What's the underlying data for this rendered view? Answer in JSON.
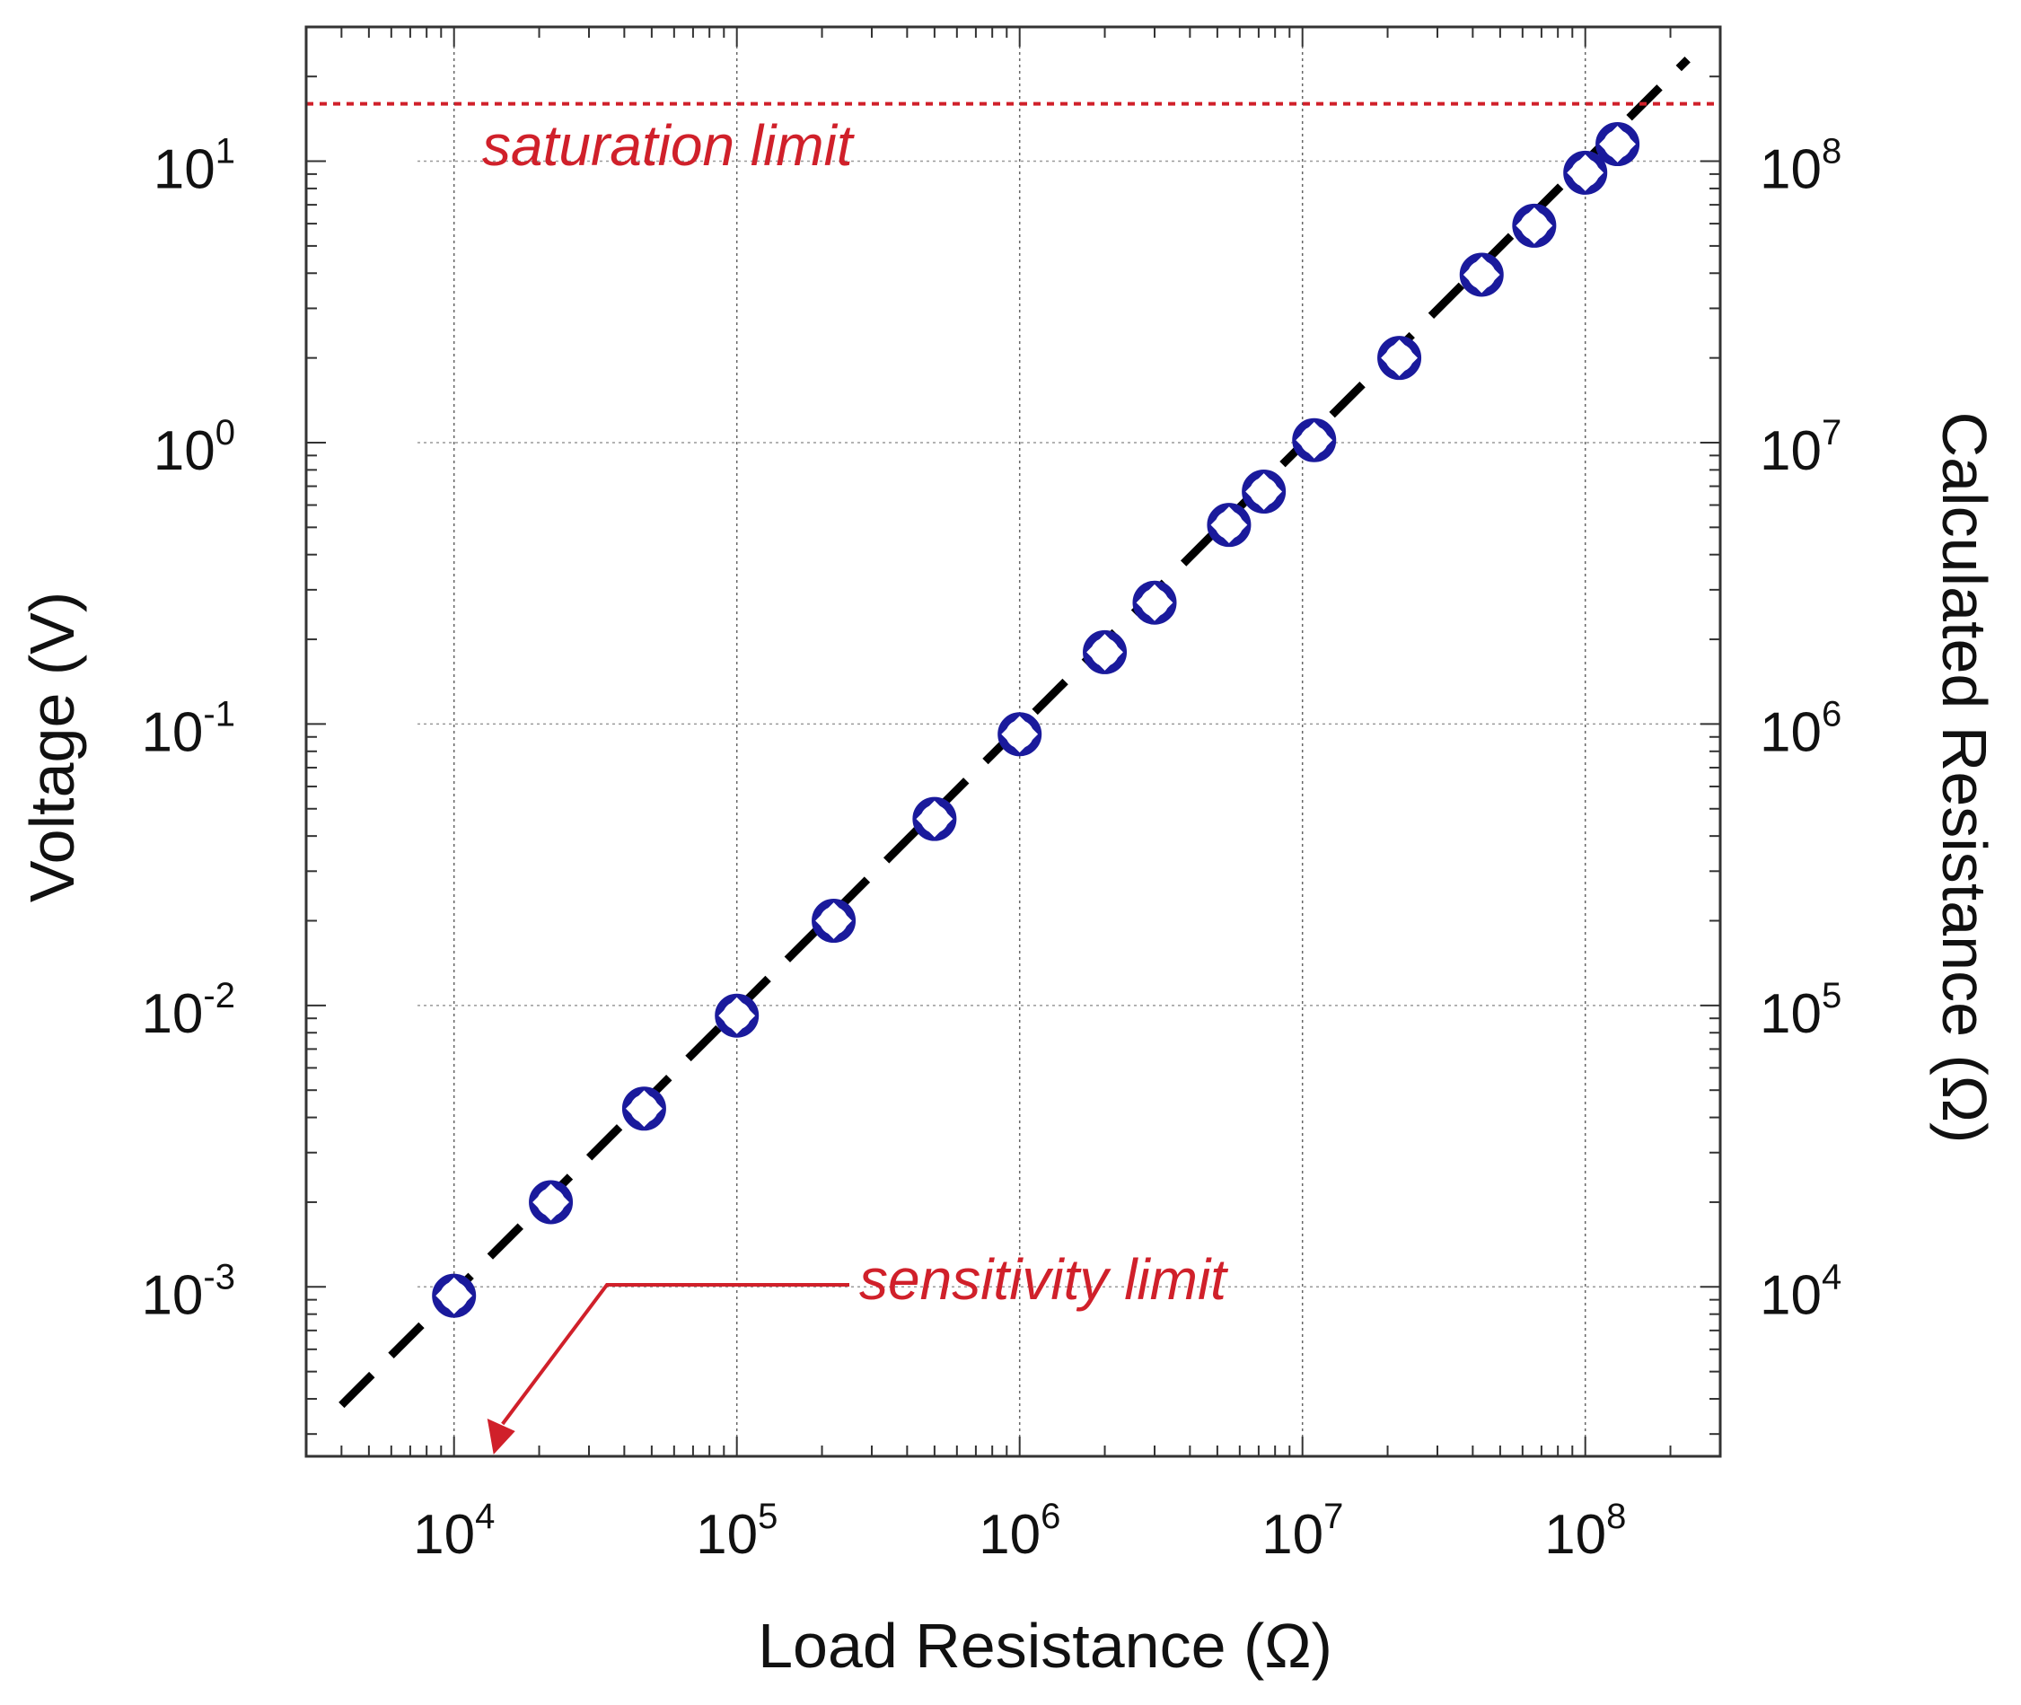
{
  "chart_data": {
    "type": "scatter",
    "title": "",
    "xlabel": "Load Resistance (Ω)",
    "ylabel": "Voltage (V)",
    "y2label": "Calculated Resistance (Ω)",
    "xscale": "log",
    "yscale": "log",
    "y2scale": "log",
    "xlim": [
      3000,
      300000000
    ],
    "ylim": [
      0.00025,
      30
    ],
    "y2lim": [
      2500,
      300000000
    ],
    "grid": true,
    "x_tick_labels": [
      {
        "value": 10000,
        "base": "10",
        "exp": "4"
      },
      {
        "value": 100000,
        "base": "10",
        "exp": "5"
      },
      {
        "value": 1000000,
        "base": "10",
        "exp": "6"
      },
      {
        "value": 10000000,
        "base": "10",
        "exp": "7"
      },
      {
        "value": 100000000,
        "base": "10",
        "exp": "8"
      }
    ],
    "y_tick_labels": [
      {
        "value": 0.001,
        "base": "10",
        "exp": "-3"
      },
      {
        "value": 0.01,
        "base": "10",
        "exp": "-2"
      },
      {
        "value": 0.1,
        "base": "10",
        "exp": "-1"
      },
      {
        "value": 1,
        "base": "10",
        "exp": "0"
      },
      {
        "value": 10,
        "base": "10",
        "exp": "1"
      }
    ],
    "y2_tick_labels": [
      {
        "value": 10000,
        "base": "10",
        "exp": "4"
      },
      {
        "value": 100000,
        "base": "10",
        "exp": "5"
      },
      {
        "value": 1000000,
        "base": "10",
        "exp": "6"
      },
      {
        "value": 10000000,
        "base": "10",
        "exp": "7"
      },
      {
        "value": 100000000,
        "base": "10",
        "exp": "8"
      }
    ],
    "series": [
      {
        "marker": "open-circle",
        "axis": "left",
        "color": "#1a1a9c",
        "x": [
          10000,
          22000,
          47000,
          100000,
          220000,
          500000,
          1000000,
          2000000,
          3000000,
          5500000,
          7300000,
          11000000,
          22000000,
          43000000,
          66000000,
          100000000,
          130000000
        ],
        "y": [
          0.00093,
          0.002,
          0.0043,
          0.0092,
          0.02,
          0.046,
          0.092,
          0.18,
          0.27,
          0.51,
          0.67,
          1.02,
          2.0,
          3.95,
          5.9,
          9.1,
          11.5
        ]
      },
      {
        "marker": "diamond",
        "axis": "right",
        "color": "#ffffff",
        "x": [
          10000,
          22000,
          47000,
          100000,
          220000,
          500000,
          1000000,
          2000000,
          3000000,
          5500000,
          7300000,
          11000000,
          22000000,
          43000000,
          66000000,
          100000000,
          130000000
        ],
        "y": [
          9300,
          20000,
          43000,
          92000,
          200000,
          460000,
          920000,
          1800000,
          2700000,
          5100000,
          6700000,
          10200000,
          20000000,
          39500000,
          59000000,
          91000000,
          115000000
        ]
      },
      {
        "style": "dashed-line",
        "color": "#000000",
        "x": [
          4000,
          230000000
        ],
        "y": [
          0.00038,
          23
        ]
      }
    ],
    "annotations": {
      "saturation": {
        "text": "saturation limit",
        "y": 16,
        "color": "#d0202a"
      },
      "sensitivity": {
        "text": "sensitivity limit",
        "arrow_to_x": 14000,
        "color": "#d0202a"
      }
    }
  }
}
